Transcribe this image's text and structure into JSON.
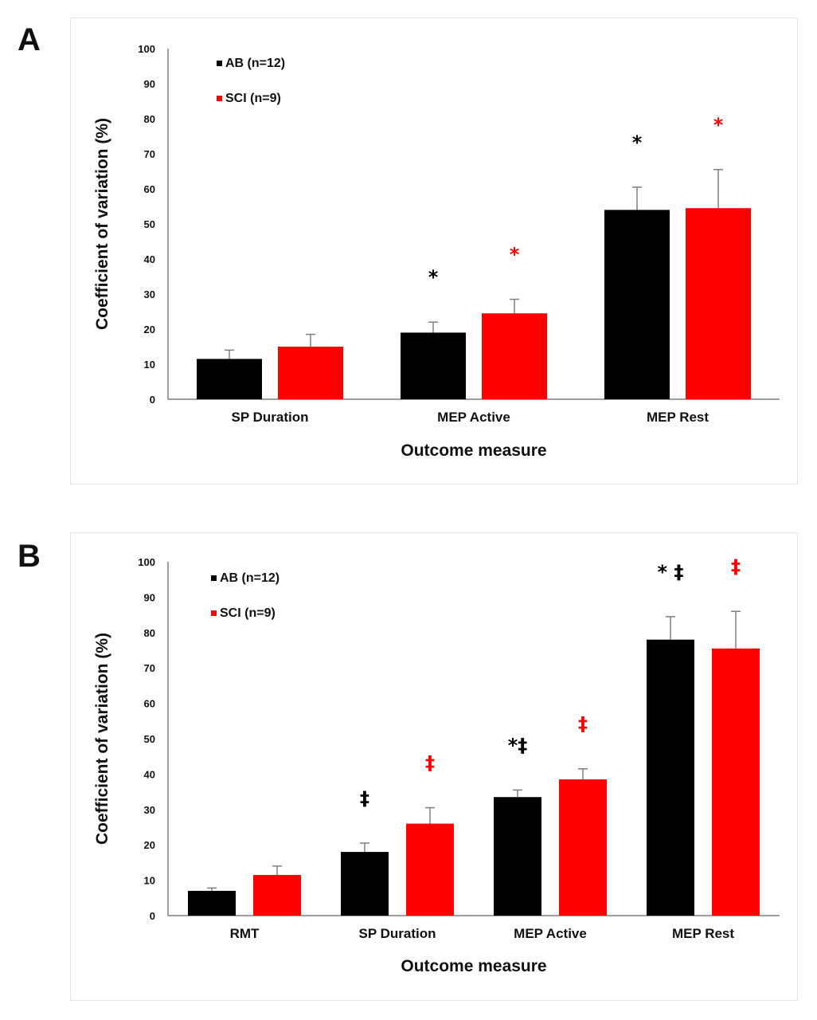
{
  "colors": {
    "AB": "#000000",
    "SCI": "#ff0000",
    "axis": "#7f7f7f"
  },
  "chart_data": [
    {
      "panel": "A",
      "type": "bar",
      "xlabel": "Outcome measure",
      "ylabel": "Coefficient of variation (%)",
      "ylim": [
        0,
        100
      ],
      "yticks": [
        0,
        10,
        20,
        30,
        40,
        50,
        60,
        70,
        80,
        90,
        100
      ],
      "grid": false,
      "legend_position": "top-left",
      "categories": [
        "SP Duration",
        "MEP Active",
        "MEP Rest"
      ],
      "series": [
        {
          "name": "AB (n=12)",
          "color": "#000000",
          "values": [
            11.5,
            19,
            54
          ],
          "errors": [
            2.5,
            3,
            6.5
          ],
          "marks": [
            "",
            "*",
            "*"
          ]
        },
        {
          "name": "SCI (n=9)",
          "color": "#ff0000",
          "values": [
            15,
            24.5,
            54.5
          ],
          "errors": [
            3.5,
            4,
            11
          ],
          "marks": [
            "",
            "*",
            "*"
          ]
        }
      ]
    },
    {
      "panel": "B",
      "type": "bar",
      "xlabel": "Outcome measure",
      "ylabel": "Coefficient of variation (%)",
      "ylim": [
        0,
        100
      ],
      "yticks": [
        0,
        10,
        20,
        30,
        40,
        50,
        60,
        70,
        80,
        90,
        100
      ],
      "grid": false,
      "legend_position": "top-left",
      "categories": [
        "RMT",
        "SP Duration",
        "MEP Active",
        "MEP Rest"
      ],
      "series": [
        {
          "name": "AB (n=12)",
          "color": "#000000",
          "values": [
            7,
            18,
            33.5,
            78
          ],
          "errors": [
            0.8,
            2.5,
            2,
            6.5
          ],
          "marks": [
            "",
            "‡",
            "*‡",
            "* ‡"
          ]
        },
        {
          "name": "SCI (n=9)",
          "color": "#ff0000",
          "values": [
            11.5,
            26,
            38.5,
            75.5
          ],
          "errors": [
            2.5,
            4.5,
            3,
            10.5
          ],
          "marks": [
            "",
            "‡",
            "‡",
            "‡"
          ]
        }
      ]
    }
  ],
  "panels": [
    {
      "letter": "A"
    },
    {
      "letter": "B"
    }
  ]
}
